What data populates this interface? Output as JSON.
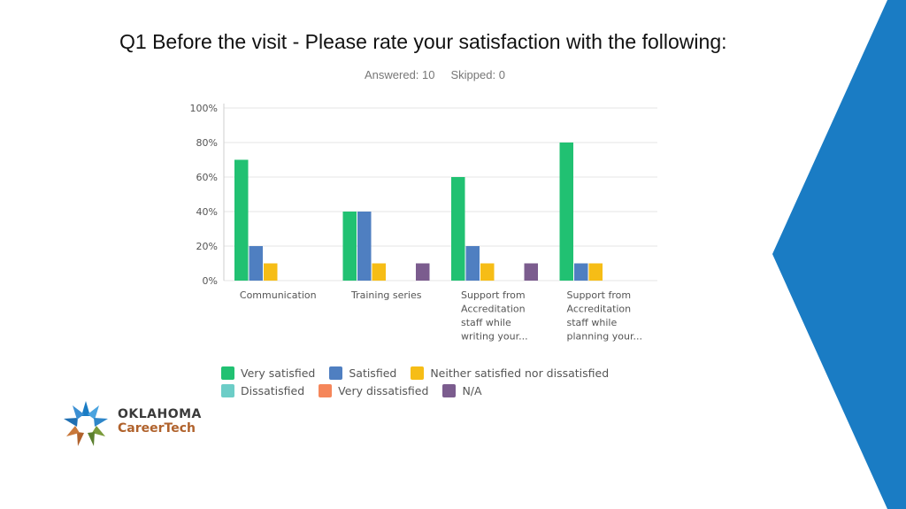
{
  "slide": {
    "title": "Q1 Before the visit - Please rate your satisfaction with the following:",
    "answered": "Answered: 10",
    "skipped": "Skipped: 0"
  },
  "logo": {
    "line1": "OKLAHOMA",
    "line2": "CareerTech"
  },
  "colors": {
    "accent_blue": "#1a7cc4",
    "axis_text": "#555555",
    "grid": "#e6e6e6"
  },
  "chart_data": {
    "type": "bar",
    "categories": [
      [
        "Communication"
      ],
      [
        "Training series"
      ],
      [
        "Support from",
        "Accreditation",
        "staff while",
        "writing your..."
      ],
      [
        "Support from",
        "Accreditation",
        "staff while",
        "planning your..."
      ]
    ],
    "series": [
      {
        "name": "Very satisfied",
        "color": "#21c172",
        "values": [
          70,
          40,
          60,
          80
        ]
      },
      {
        "name": "Satisfied",
        "color": "#4f7fc1",
        "values": [
          20,
          40,
          20,
          10
        ]
      },
      {
        "name": "Neither satisfied nor dissatisfied",
        "color": "#f6bd16",
        "values": [
          10,
          10,
          10,
          10
        ]
      },
      {
        "name": "Dissatisfied",
        "color": "#6ccdc7",
        "values": [
          0,
          0,
          0,
          0
        ]
      },
      {
        "name": "Very dissatisfied",
        "color": "#f5865a",
        "values": [
          0,
          0,
          0,
          0
        ]
      },
      {
        "name": "N/A",
        "color": "#7b5c8e",
        "values": [
          0,
          10,
          10,
          0
        ]
      }
    ],
    "yticks": [
      "0%",
      "20%",
      "40%",
      "60%",
      "80%",
      "100%"
    ],
    "ylim": [
      0,
      100
    ],
    "grid": true,
    "legend": "bottom"
  }
}
